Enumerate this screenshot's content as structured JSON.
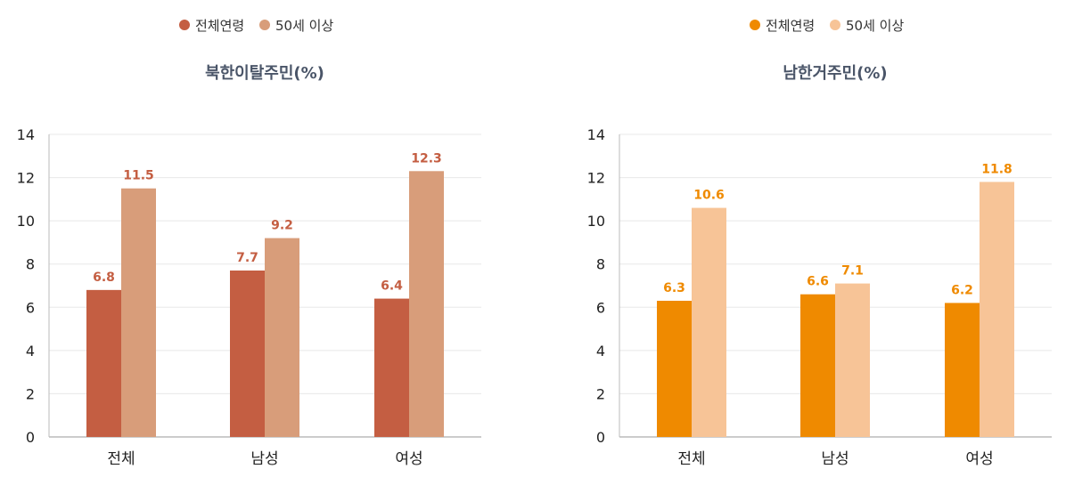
{
  "chart_data": [
    {
      "type": "bar",
      "title": "북한이탈주민(%)",
      "categories": [
        "전체",
        "남성",
        "여성"
      ],
      "series": [
        {
          "name": "전체연령",
          "values": [
            6.8,
            7.7,
            6.4
          ],
          "color": "#C45E42"
        },
        {
          "name": "50세 이상",
          "values": [
            11.5,
            9.2,
            12.3
          ],
          "color": "#D89D7A"
        }
      ],
      "label_color": "#C45E42",
      "ylim": [
        0,
        14
      ],
      "yticks": [
        0,
        2,
        4,
        6,
        8,
        10,
        12,
        14
      ],
      "grid": true,
      "legend": "top-center",
      "xlabel": "",
      "ylabel": ""
    },
    {
      "type": "bar",
      "title": "남한거주민(%)",
      "categories": [
        "전체",
        "남성",
        "여성"
      ],
      "series": [
        {
          "name": "전체연령",
          "values": [
            6.3,
            6.6,
            6.2
          ],
          "color": "#EF8A00"
        },
        {
          "name": "50세 이상",
          "values": [
            10.6,
            7.1,
            11.8
          ],
          "color": "#F7C497"
        }
      ],
      "label_color": "#EF8A00",
      "ylim": [
        0,
        14
      ],
      "yticks": [
        0,
        2,
        4,
        6,
        8,
        10,
        12,
        14
      ],
      "grid": true,
      "legend": "top-center",
      "xlabel": "",
      "ylabel": ""
    }
  ]
}
